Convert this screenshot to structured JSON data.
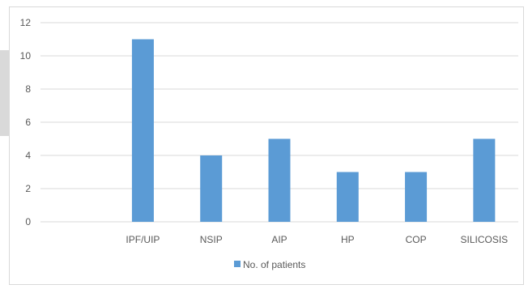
{
  "chart_data": {
    "type": "bar",
    "categories": [
      "",
      "IPF/UIP",
      "NSIP",
      "AIP",
      "HP",
      "COP",
      "SILICOSIS"
    ],
    "series": [
      {
        "name": "No. of patients",
        "values": [
          null,
          11,
          4,
          5,
          3,
          3,
          5
        ],
        "color": "#5b9bd5"
      }
    ],
    "ylim": [
      0,
      12
    ],
    "yticks": [
      0,
      2,
      4,
      6,
      8,
      10,
      12
    ],
    "grid": true,
    "legend_position": "bottom",
    "gridline_color": "#d9d9d9",
    "text_color": "#595959"
  }
}
